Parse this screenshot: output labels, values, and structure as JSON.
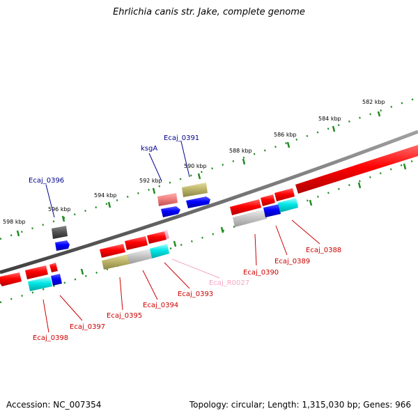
{
  "title": "Ehrlichia canis str. Jake, complete genome",
  "footer": {
    "accession": "Accession: NC_007354",
    "summary": "Topology: circular; Length: 1,315,030 bp; Genes: 966"
  },
  "ticks": [
    "582 kbp",
    "584 kbp",
    "586 kbp",
    "588 kbp",
    "590 kbp",
    "592 kbp",
    "594 kbp",
    "596 kbp",
    "598 kbp"
  ],
  "genes": [
    {
      "name": "Ecaj_0396",
      "color": "#00008b"
    },
    {
      "name": "ksgA",
      "color": "#00008b"
    },
    {
      "name": "Ecaj_0391",
      "color": "#00008b"
    },
    {
      "name": "Ecaj_0398",
      "color": "#cc0000"
    },
    {
      "name": "Ecaj_0397",
      "color": "#cc0000"
    },
    {
      "name": "Ecaj_0395",
      "color": "#cc0000"
    },
    {
      "name": "Ecaj_0394",
      "color": "#cc0000"
    },
    {
      "name": "Ecaj_0393",
      "color": "#cc0000"
    },
    {
      "name": "Ecaj_R0027",
      "color": "#f4a6c4"
    },
    {
      "name": "Ecaj_0390",
      "color": "#cc0000"
    },
    {
      "name": "Ecaj_0389",
      "color": "#cc0000"
    },
    {
      "name": "Ecaj_0388",
      "color": "#cc0000"
    }
  ]
}
